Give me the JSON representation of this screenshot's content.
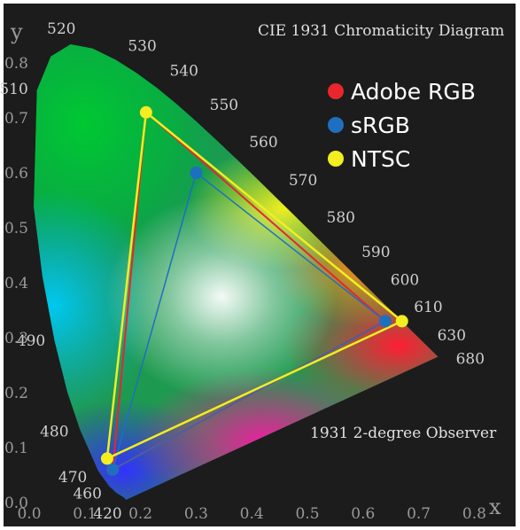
{
  "chart_data": {
    "type": "scatter",
    "title": "CIE 1931 Chromaticity Diagram",
    "annotation": "1931 2-degree Observer",
    "xlabel": "x",
    "ylabel": "y",
    "xlim": [
      0.0,
      0.8
    ],
    "ylim": [
      0.0,
      0.85
    ],
    "grid": false,
    "legend_position": "top-right",
    "x_ticks": [
      {
        "label": "0.0",
        "value": 0.0
      },
      {
        "label": "0.1",
        "value": 0.1
      },
      {
        "label": "0.2",
        "value": 0.2
      },
      {
        "label": "0.3",
        "value": 0.3
      },
      {
        "label": "0.4",
        "value": 0.4
      },
      {
        "label": "0.5",
        "value": 0.5
      },
      {
        "label": "0.6",
        "value": 0.6
      },
      {
        "label": "0.7",
        "value": 0.7
      },
      {
        "label": "0.8",
        "value": 0.8
      }
    ],
    "y_ticks": [
      {
        "label": "0.0",
        "value": 0.0
      },
      {
        "label": "0.1",
        "value": 0.1
      },
      {
        "label": "0.2",
        "value": 0.2
      },
      {
        "label": "0.3",
        "value": 0.3
      },
      {
        "label": "0.4",
        "value": 0.4
      },
      {
        "label": "0.5",
        "value": 0.5
      },
      {
        "label": "0.6",
        "value": 0.6
      },
      {
        "label": "0.7",
        "value": 0.7
      },
      {
        "label": "0.8",
        "value": 0.8
      }
    ],
    "spectral_locus": [
      [
        0.1741,
        0.005
      ],
      [
        0.1703,
        0.0094
      ],
      [
        0.1566,
        0.0177
      ],
      [
        0.144,
        0.0297
      ],
      [
        0.1241,
        0.0578
      ],
      [
        0.0913,
        0.1327
      ],
      [
        0.0687,
        0.2007
      ],
      [
        0.0454,
        0.295
      ],
      [
        0.0235,
        0.4127
      ],
      [
        0.0082,
        0.5384
      ],
      [
        0.0139,
        0.7502
      ],
      [
        0.0389,
        0.812
      ],
      [
        0.0743,
        0.8338
      ],
      [
        0.1142,
        0.8262
      ],
      [
        0.1547,
        0.8059
      ],
      [
        0.1929,
        0.7816
      ],
      [
        0.2296,
        0.7543
      ],
      [
        0.2658,
        0.7243
      ],
      [
        0.3016,
        0.6923
      ],
      [
        0.3373,
        0.6589
      ],
      [
        0.3731,
        0.6245
      ],
      [
        0.4087,
        0.5896
      ],
      [
        0.4441,
        0.5547
      ],
      [
        0.4788,
        0.5202
      ],
      [
        0.5125,
        0.4866
      ],
      [
        0.5448,
        0.4544
      ],
      [
        0.5752,
        0.4242
      ],
      [
        0.6029,
        0.3965
      ],
      [
        0.627,
        0.3725
      ],
      [
        0.6482,
        0.3514
      ],
      [
        0.6658,
        0.334
      ],
      [
        0.6915,
        0.3083
      ],
      [
        0.7079,
        0.292
      ],
      [
        0.7347,
        0.2653
      ]
    ],
    "wavelength_labels": [
      {
        "label": "420",
        "x": 0.17,
        "y": 0.0
      },
      {
        "label": "460",
        "x": 0.14,
        "y": 0.03
      },
      {
        "label": "470",
        "x": 0.12,
        "y": 0.06
      },
      {
        "label": "480",
        "x": 0.09,
        "y": 0.13
      },
      {
        "label": "490",
        "x": 0.045,
        "y": 0.295
      },
      {
        "label": "510",
        "x": 0.014,
        "y": 0.75
      },
      {
        "label": "520",
        "x": 0.074,
        "y": 0.834
      },
      {
        "label": "530",
        "x": 0.155,
        "y": 0.806
      },
      {
        "label": "540",
        "x": 0.23,
        "y": 0.754
      },
      {
        "label": "550",
        "x": 0.302,
        "y": 0.692
      },
      {
        "label": "560",
        "x": 0.373,
        "y": 0.624
      },
      {
        "label": "570",
        "x": 0.444,
        "y": 0.555
      },
      {
        "label": "580",
        "x": 0.512,
        "y": 0.487
      },
      {
        "label": "590",
        "x": 0.575,
        "y": 0.424
      },
      {
        "label": "600",
        "x": 0.627,
        "y": 0.373
      },
      {
        "label": "610",
        "x": 0.666,
        "y": 0.334
      },
      {
        "label": "630",
        "x": 0.708,
        "y": 0.292
      },
      {
        "label": "680",
        "x": 0.735,
        "y": 0.265
      }
    ],
    "series": [
      {
        "name": "Adobe RGB",
        "color": "#e8262c",
        "points": [
          [
            0.64,
            0.33
          ],
          [
            0.21,
            0.71
          ],
          [
            0.15,
            0.06
          ]
        ]
      },
      {
        "name": "sRGB",
        "color": "#1f6fc0",
        "points": [
          [
            0.64,
            0.33
          ],
          [
            0.3,
            0.6
          ],
          [
            0.15,
            0.06
          ]
        ]
      },
      {
        "name": "NTSC",
        "color": "#f2ee1f",
        "points": [
          [
            0.67,
            0.33
          ],
          [
            0.21,
            0.71
          ],
          [
            0.14,
            0.08
          ]
        ]
      }
    ]
  }
}
